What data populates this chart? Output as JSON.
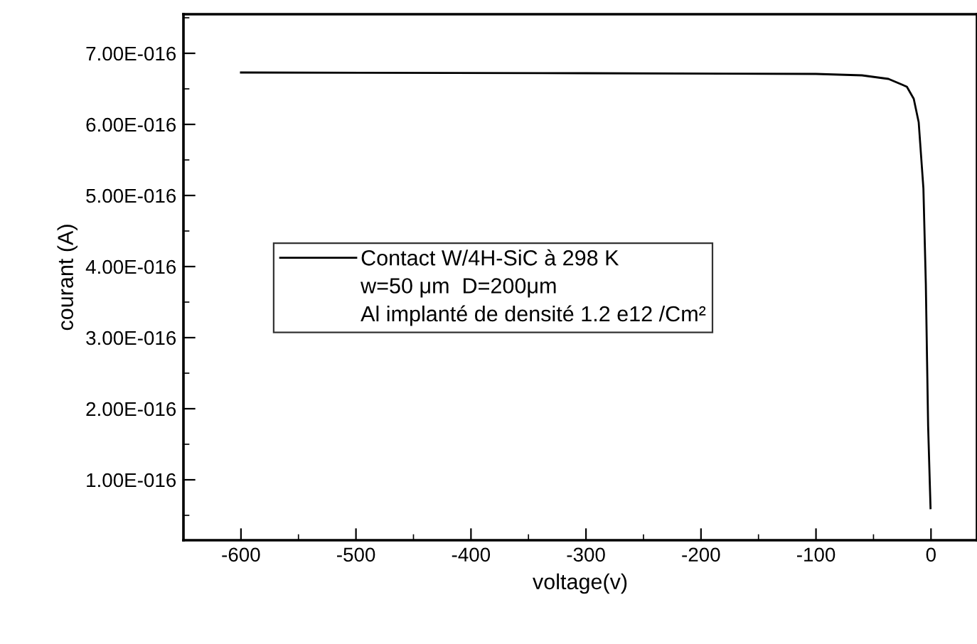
{
  "chart_data": {
    "type": "line",
    "xlabel": "voltage(v)",
    "ylabel": "courant (A)",
    "annotations": [
      "w=50 μm  D=200μm",
      "Al implanté de densité 1.2 e12 /Cm²"
    ],
    "series": [
      {
        "name": "Contact W/4H-SiC à 298 K",
        "color": "#000000",
        "x": [
          -600,
          -300,
          -100,
          -60,
          -37,
          -21,
          -15,
          -10.7,
          -6.6,
          -4.5,
          -2.5,
          -0.4
        ],
        "values": [
          6.73e-16,
          6.72e-16,
          6.71e-16,
          6.69e-16,
          6.64e-16,
          6.53e-16,
          6.36e-16,
          6.03e-16,
          5.1e-16,
          3.76e-16,
          1.76e-16,
          6e-17
        ]
      }
    ],
    "xlim": [
      -650,
      40
    ],
    "ylim": [
      1.5e-17,
      7.55e-16
    ],
    "xticks": [
      -600,
      -500,
      -400,
      -300,
      -200,
      -100,
      0
    ],
    "yticks": [
      {
        "value": 1e-16,
        "label": "1.00E-016"
      },
      {
        "value": 2e-16,
        "label": "2.00E-016"
      },
      {
        "value": 3e-16,
        "label": "3.00E-016"
      },
      {
        "value": 4e-16,
        "label": "4.00E-016"
      },
      {
        "value": 5e-16,
        "label": "5.00E-016"
      },
      {
        "value": 6e-16,
        "label": "6.00E-016"
      },
      {
        "value": 7e-16,
        "label": "7.00E-016"
      }
    ],
    "grid": false,
    "legend": "center left",
    "marker": "none",
    "line_style": "solid"
  }
}
